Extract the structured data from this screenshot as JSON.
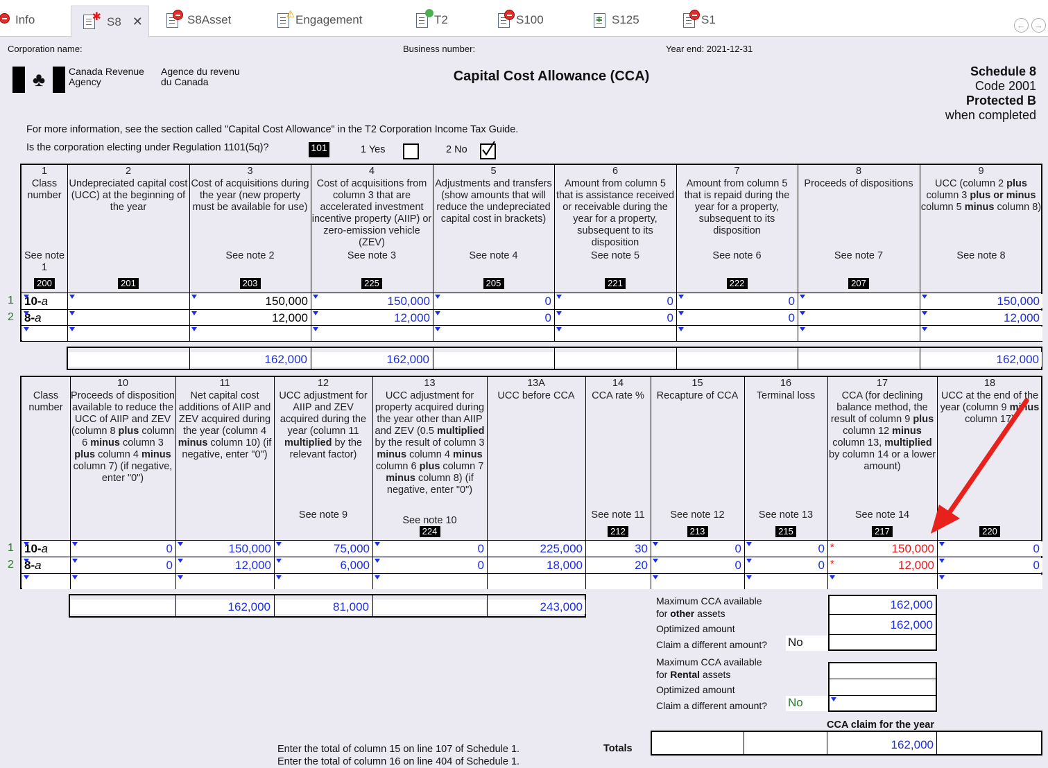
{
  "tabs": [
    {
      "label": "Info"
    },
    {
      "label": "S8"
    },
    {
      "label": "S8Asset"
    },
    {
      "label": "Engagement"
    },
    {
      "label": "T2"
    },
    {
      "label": "S100"
    },
    {
      "label": "S125"
    },
    {
      "label": "S1"
    }
  ],
  "tab_close": "✕",
  "header": {
    "corp_name_label": "Corporation name:",
    "business_number_label": "Business number:",
    "year_end_label": "Year end: 2021-12-31",
    "cra_en": "Canada Revenue Agency",
    "cra_fr": "Agence du revenu du Canada",
    "title": "Capital Cost Allowance (CCA)",
    "schedule": "Schedule 8",
    "code": "Code 2001",
    "protected": "Protected B",
    "when_completed": "when completed"
  },
  "info_line": "For more information, see the section called \"Capital Cost Allowance\" in the T2 Corporation Income Tax Guide.",
  "election": {
    "question": "Is the corporation electing under Regulation 1101(5q)?",
    "code": "101",
    "yes_label": "1 Yes",
    "no_label": "2 No",
    "yes_checked": false,
    "no_checked": true
  },
  "table1": {
    "columns": [
      {
        "num": "1",
        "title": "Class number",
        "note": "See note 1",
        "code": "200"
      },
      {
        "num": "2",
        "title": "Undepreciated capital cost (UCC) at the beginning of the year",
        "note": "",
        "code": "201"
      },
      {
        "num": "3",
        "title": "Cost of acquisitions during the year (new property must be available for use)",
        "note": "See note 2",
        "code": "203"
      },
      {
        "num": "4",
        "title": "Cost of acquisitions from column 3 that are accelerated investment incentive property (AIIP) or zero-emission vehicle (ZEV)",
        "note": "See note 3",
        "code": "225"
      },
      {
        "num": "5",
        "title": "Adjustments and transfers (show amounts that will reduce the undepreciated capital cost in brackets)",
        "note": "See note 4",
        "code": "205"
      },
      {
        "num": "6",
        "title": "Amount from column 5 that is assistance received or receivable during the year for a property, subsequent to its disposition",
        "note": "See note 5",
        "code": "221"
      },
      {
        "num": "7",
        "title": "Amount from column 5 that is repaid during the year for a property, subsequent to its disposition",
        "note": "See note 6",
        "code": "222"
      },
      {
        "num": "8",
        "title": "Proceeds of dispositions",
        "note": "See note 7",
        "code": "207"
      },
      {
        "num": "9",
        "title": "UCC (column 2 plus column 3 plus or minus column 5 minus column 8)",
        "note": "See note 8",
        "code": ""
      }
    ],
    "rows": [
      {
        "num": "1",
        "cells": [
          "10-a",
          "",
          "150,000",
          "150,000",
          "0",
          "0",
          "0",
          "",
          "150,000"
        ]
      },
      {
        "num": "2",
        "cells": [
          "8-a",
          "",
          "12,000",
          "12,000",
          "0",
          "0",
          "0",
          "",
          "12,000"
        ]
      },
      {
        "num": "",
        "cells": [
          "",
          "",
          "",
          "",
          "",
          "",
          "",
          "",
          ""
        ]
      }
    ],
    "totals": [
      "",
      "162,000",
      "162,000",
      "",
      "",
      "",
      "",
      "162,000"
    ]
  },
  "table2": {
    "columns": [
      {
        "num": "",
        "title": "Class number",
        "note": "",
        "code": ""
      },
      {
        "num": "10",
        "title": "Proceeds of disposition available to reduce the UCC of AIIP and ZEV (column 8 plus column 6 minus column 3 plus column 4 minus column 7) (if negative, enter \"0\")",
        "note": "",
        "code": ""
      },
      {
        "num": "11",
        "title": "Net capital cost additions of AIIP and ZEV acquired during the year (column 4 minus column 10) (if negative, enter \"0\")",
        "note": "",
        "code": ""
      },
      {
        "num": "12",
        "title": "UCC adjustment for AIIP and ZEV acquired during the year (column 11 multiplied by the relevant factor)",
        "note": "See note 9",
        "code": ""
      },
      {
        "num": "13",
        "title": "UCC adjustment for property acquired during the year other than AIIP and ZEV (0.5 multiplied by the result of column 3 minus column 4 minus column 6 plus column 7 minus column 8) (if negative, enter \"0\")",
        "note": "See note 10",
        "code": "224"
      },
      {
        "num": "13A",
        "title": "UCC before CCA",
        "note": "",
        "code": ""
      },
      {
        "num": "14",
        "title": "CCA rate %",
        "note": "See note 11",
        "code": "212"
      },
      {
        "num": "15",
        "title": "Recapture of CCA",
        "note": "See note 12",
        "code": "213"
      },
      {
        "num": "16",
        "title": "Terminal loss",
        "note": "See note 13",
        "code": "215"
      },
      {
        "num": "17",
        "title": "CCA (for declining balance method, the result of column 9 plus column 12 minus column 13, multiplied by column 14 or a lower amount)",
        "note": "See note 14",
        "code": "217"
      },
      {
        "num": "18",
        "title": "UCC at the end of the year (column 9 minus column 17)",
        "note": "",
        "code": "220"
      }
    ],
    "rows": [
      {
        "num": "1",
        "cells": [
          "10-a",
          "0",
          "150,000",
          "75,000",
          "0",
          "225,000",
          "30",
          "0",
          "0",
          "150,000",
          "0"
        ]
      },
      {
        "num": "2",
        "cells": [
          "8-a",
          "0",
          "12,000",
          "6,000",
          "0",
          "18,000",
          "20",
          "0",
          "0",
          "12,000",
          "0"
        ]
      },
      {
        "num": "",
        "cells": [
          "",
          "",
          "",
          "",
          "",
          "",
          "",
          "",
          "",
          "",
          ""
        ]
      }
    ],
    "totals": [
      "",
      "162,000",
      "81,000",
      "",
      "243,000"
    ]
  },
  "summary": {
    "max_other_l1": "Maximum CCA available",
    "max_other_l2": "for other assets",
    "max_other_value": "162,000",
    "optimized_label": "Optimized amount",
    "optimized_value": "162,000",
    "claim_diff_label": "Claim a different amount?",
    "claim_diff_value": "No",
    "max_rental_l1": "Maximum CCA available",
    "max_rental_l2": "for Rental assets",
    "max_rental_value": "",
    "optimized2_label": "Optimized amount",
    "optimized2_value": "",
    "claim_diff2_label": "Claim a different amount?",
    "claim_diff2_value": "No",
    "cca_claim_label": "CCA claim for the year",
    "totals_label": "Totals",
    "totals_cca": "162,000"
  },
  "footer": {
    "line1": "Enter the total of column 15 on line 107 of Schedule 1.",
    "line2": "Enter the total of column 16 on line 404 of Schedule 1."
  },
  "colors": {
    "accent_blue": "#1d2ee0",
    "red": "#e3181a",
    "annotation_arrow": "#e8211c"
  }
}
